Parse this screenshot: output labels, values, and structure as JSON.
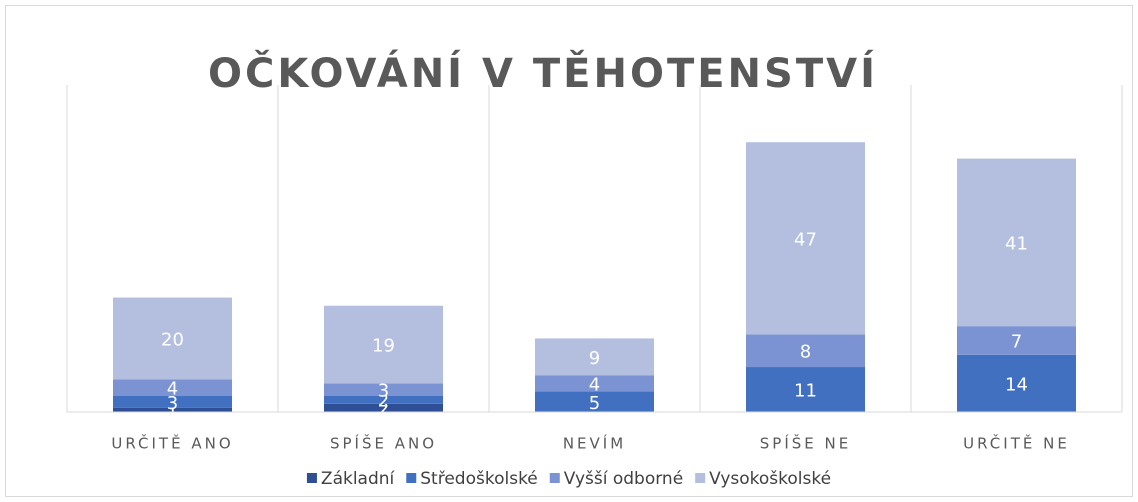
{
  "chart_data": {
    "type": "bar",
    "stacked": true,
    "title": "OČKOVÁNÍ V TĚHOTENSTVÍ",
    "categories": [
      "URČITĚ ANO",
      "SPÍŠE ANO",
      "NEVÍM",
      "SPÍŠE NE",
      "URČITĚ NE"
    ],
    "series": [
      {
        "name": "Základní",
        "color": "#2e4f95",
        "values": [
          1,
          2,
          0,
          0,
          0
        ]
      },
      {
        "name": "Středoškolské",
        "color": "#4270c0",
        "values": [
          3,
          2,
          5,
          11,
          14
        ]
      },
      {
        "name": "Vyšší odborné",
        "color": "#7b93d3",
        "values": [
          4,
          3,
          4,
          8,
          7
        ]
      },
      {
        "name": "Vysokoškolské",
        "color": "#b4bfe0",
        "values": [
          20,
          19,
          9,
          47,
          41
        ]
      }
    ],
    "ylim": [
      0,
      80
    ],
    "legend": "bottom"
  }
}
